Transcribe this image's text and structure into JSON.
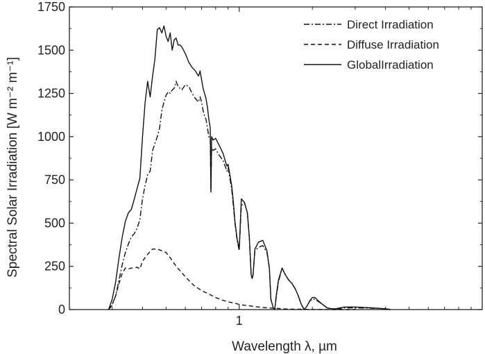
{
  "chart_data": {
    "type": "line",
    "xscale": "log",
    "xlabel": "Wavelength  λ, µm",
    "ylabel": "Spectral Solar Irradiation [W m⁻² m⁻¹]",
    "ylim": [
      0,
      1750
    ],
    "xlim": [
      0.2,
      10
    ],
    "grid": false,
    "legend_position": "top-right",
    "x_ticks": [
      {
        "value": 1,
        "label": "1"
      }
    ],
    "y_ticks": [
      {
        "value": 0,
        "label": "0"
      },
      {
        "value": 250,
        "label": "250"
      },
      {
        "value": 500,
        "label": "500"
      },
      {
        "value": 750,
        "label": "750"
      },
      {
        "value": 1000,
        "label": "1000"
      },
      {
        "value": 1250,
        "label": "1250"
      },
      {
        "value": 1500,
        "label": "1500"
      },
      {
        "value": 1750,
        "label": "1750"
      }
    ],
    "series": [
      {
        "name": "Direct Irradiation",
        "style": "dashdot",
        "x": [
          0.29,
          0.3,
          0.31,
          0.32,
          0.33,
          0.34,
          0.35,
          0.36,
          0.37,
          0.38,
          0.39,
          0.4,
          0.41,
          0.42,
          0.43,
          0.44,
          0.45,
          0.46,
          0.47,
          0.48,
          0.49,
          0.5,
          0.51,
          0.52,
          0.53,
          0.54,
          0.55,
          0.56,
          0.57,
          0.58,
          0.6,
          0.62,
          0.64,
          0.66,
          0.68,
          0.69,
          0.7,
          0.71,
          0.72,
          0.73,
          0.74,
          0.75,
          0.76,
          0.765,
          0.77,
          0.78,
          0.8,
          0.82,
          0.84,
          0.86,
          0.88,
          0.89,
          0.9,
          0.91,
          0.93,
          0.94,
          0.95,
          0.96,
          0.98,
          1.0,
          1.02,
          1.05,
          1.08,
          1.1,
          1.12,
          1.13,
          1.14,
          1.16,
          1.2,
          1.25,
          1.3,
          1.33,
          1.35,
          1.38,
          1.4,
          1.42,
          1.45,
          1.5,
          1.55,
          1.6,
          1.65,
          1.7,
          1.75,
          1.8,
          1.85,
          1.9,
          1.95,
          2.0,
          2.05,
          2.1,
          2.2,
          2.3,
          2.4,
          2.5,
          2.6,
          2.7,
          3.0,
          3.5,
          4.0,
          4.2
        ],
        "y": [
          0,
          25,
          80,
          170,
          260,
          330,
          380,
          420,
          440,
          470,
          520,
          640,
          720,
          780,
          800,
          920,
          960,
          1000,
          1050,
          1150,
          1200,
          1240,
          1260,
          1250,
          1270,
          1280,
          1320,
          1290,
          1280,
          1270,
          1300,
          1290,
          1250,
          1220,
          1200,
          1230,
          1200,
          1150,
          1120,
          1100,
          1050,
          1000,
          980,
          680,
          940,
          920,
          930,
          900,
          880,
          860,
          820,
          800,
          820,
          780,
          700,
          640,
          570,
          500,
          400,
          340,
          600,
          620,
          560,
          420,
          200,
          180,
          200,
          340,
          360,
          370,
          330,
          240,
          60,
          10,
          0,
          70,
          160,
          240,
          200,
          170,
          150,
          120,
          80,
          30,
          0,
          20,
          50,
          60,
          60,
          50,
          30,
          10,
          5,
          5,
          5,
          10,
          10,
          8,
          5,
          0
        ]
      },
      {
        "name": "Diffuse Irradiation",
        "style": "dashed",
        "x": [
          0.29,
          0.3,
          0.31,
          0.32,
          0.33,
          0.34,
          0.35,
          0.36,
          0.37,
          0.38,
          0.39,
          0.4,
          0.42,
          0.44,
          0.46,
          0.48,
          0.5,
          0.52,
          0.55,
          0.6,
          0.65,
          0.7,
          0.75,
          0.8,
          0.85,
          0.9,
          0.95,
          1.0,
          1.05,
          1.1,
          1.15,
          1.2,
          1.3,
          1.4,
          1.5,
          1.6,
          1.8,
          2.0,
          2.5,
          3.0
        ],
        "y": [
          0,
          30,
          80,
          150,
          210,
          240,
          235,
          240,
          240,
          245,
          235,
          280,
          320,
          350,
          350,
          340,
          330,
          300,
          250,
          190,
          140,
          110,
          90,
          70,
          55,
          45,
          38,
          30,
          25,
          22,
          18,
          15,
          10,
          8,
          5,
          3,
          2,
          1,
          0,
          0
        ]
      },
      {
        "name": "GlobalIrradiation",
        "style": "solid",
        "x": [
          0.29,
          0.3,
          0.31,
          0.32,
          0.33,
          0.34,
          0.35,
          0.36,
          0.37,
          0.38,
          0.39,
          0.4,
          0.41,
          0.42,
          0.43,
          0.44,
          0.45,
          0.46,
          0.47,
          0.48,
          0.49,
          0.5,
          0.51,
          0.52,
          0.53,
          0.54,
          0.55,
          0.56,
          0.57,
          0.58,
          0.6,
          0.62,
          0.64,
          0.66,
          0.68,
          0.69,
          0.7,
          0.71,
          0.72,
          0.73,
          0.74,
          0.75,
          0.76,
          0.765,
          0.77,
          0.78,
          0.8,
          0.82,
          0.84,
          0.86,
          0.88,
          0.89,
          0.9,
          0.91,
          0.93,
          0.94,
          0.95,
          0.96,
          0.98,
          1.0,
          1.02,
          1.05,
          1.08,
          1.1,
          1.12,
          1.13,
          1.14,
          1.16,
          1.2,
          1.25,
          1.3,
          1.33,
          1.35,
          1.38,
          1.4,
          1.42,
          1.45,
          1.5,
          1.55,
          1.6,
          1.65,
          1.7,
          1.75,
          1.8,
          1.85,
          1.9,
          1.95,
          2.0,
          2.05,
          2.1,
          2.2,
          2.3,
          2.4,
          2.5,
          2.6,
          2.7,
          3.0,
          3.5,
          4.0,
          4.2
        ],
        "y": [
          0,
          60,
          160,
          300,
          420,
          510,
          560,
          580,
          640,
          700,
          760,
          1000,
          1200,
          1320,
          1230,
          1350,
          1450,
          1620,
          1630,
          1600,
          1640,
          1580,
          1550,
          1600,
          1500,
          1560,
          1570,
          1530,
          1530,
          1520,
          1480,
          1430,
          1400,
          1380,
          1350,
          1380,
          1330,
          1280,
          1250,
          1220,
          1170,
          1100,
          1050,
          680,
          1000,
          980,
          990,
          960,
          930,
          900,
          850,
          830,
          840,
          800,
          720,
          660,
          590,
          510,
          410,
          350,
          640,
          620,
          560,
          420,
          200,
          180,
          200,
          350,
          390,
          400,
          340,
          240,
          60,
          10,
          0,
          80,
          170,
          240,
          200,
          170,
          150,
          120,
          80,
          30,
          0,
          20,
          50,
          70,
          70,
          55,
          30,
          10,
          5,
          5,
          10,
          15,
          15,
          10,
          5,
          0
        ]
      }
    ]
  }
}
